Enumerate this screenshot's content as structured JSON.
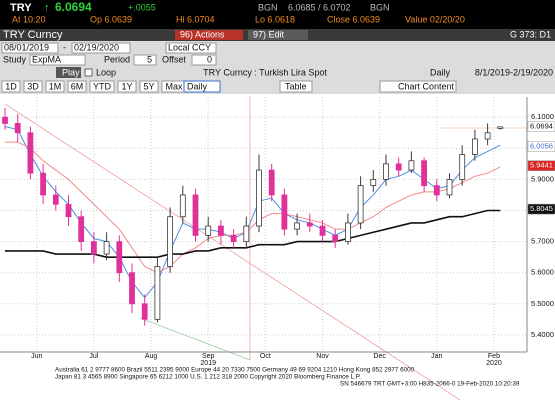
{
  "header": {
    "ticker": "TRY",
    "arrow": "↑",
    "last": "6.0694",
    "change": "+.0055",
    "bid_label": "BGN",
    "bid_ask": "6.0685 / 6.0702",
    "ask_label": "BGN",
    "time": "At 10:20",
    "open": "Op 6.0639",
    "high": "Hi 6.0704",
    "low": "Lo 6.0618",
    "close": "Close 6.0639",
    "value": "Value 02/20/20"
  },
  "toolbar": {
    "security": "TRY Curncy",
    "actions": "96) Actions",
    "edit": "97) Edit",
    "page": "G 373: D1"
  },
  "controls": {
    "start": "08/01/2019",
    "dash": "-",
    "end": "02/19/2020",
    "currency": "Local CCY",
    "study_label": "Study",
    "study": "ExpMA",
    "period_label": "Period",
    "period": "5",
    "offset_label": "Offset",
    "offset": "0",
    "play": "Play",
    "loop": "Loop",
    "frequency": "Daily",
    "range": "8/1/2019-2/19/2020"
  },
  "tabs": {
    "items": [
      "1D",
      "3D",
      "1M",
      "6M",
      "YTD",
      "1Y",
      "5Y",
      "Max"
    ],
    "period_select": "Daily",
    "table": "Table",
    "chart_content": "Chart Content"
  },
  "footer": [
    "Australia 61 2 9777 8600 Brazil 5511 2395 9000 Europe 44 20 7330 7500 Germany 49 69 9204 1210 Hong Kong 852 2977 6000",
    "Japan 81 3 4565 8900          Singapore 65 6212 1000          U.S. 1 212 318 2000          Copyright 2020 Bloomberg Finance L.P.",
    "SN 546679 TRT  GMT+3:00 H835-2066-0 19-Feb-2020 10:20:39"
  ],
  "chart_data": {
    "type": "candlestick",
    "title": "TRY Curncy : Turkish Lira Spot",
    "categories": [
      null,
      null,
      null,
      null,
      null,
      null,
      null,
      null,
      null,
      null,
      null,
      null,
      null,
      null,
      null,
      null,
      null,
      null,
      null,
      null,
      null,
      null,
      null,
      null,
      null,
      null,
      null,
      null,
      null,
      null,
      null,
      null,
      null,
      null,
      null,
      null,
      null,
      null,
      null,
      null
    ],
    "open": [
      6.1,
      6.08,
      6.05,
      5.92,
      5.85,
      5.82,
      5.78,
      5.7,
      5.66,
      5.7,
      5.6,
      5.5,
      5.45,
      5.62,
      5.78,
      5.85,
      5.72,
      5.75,
      5.72,
      5.7,
      5.75,
      5.93,
      5.85,
      5.74,
      5.76,
      5.75,
      5.72,
      5.7,
      5.76,
      5.88,
      5.9,
      5.95,
      5.93,
      5.96,
      5.88,
      5.85,
      5.9,
      5.98,
      6.03,
      6.064
    ],
    "high": [
      6.13,
      6.11,
      6.07,
      5.95,
      5.88,
      5.85,
      5.8,
      5.73,
      5.73,
      5.72,
      5.63,
      5.53,
      5.65,
      5.81,
      5.88,
      5.87,
      5.78,
      5.77,
      5.74,
      5.78,
      5.98,
      5.95,
      5.87,
      5.79,
      5.79,
      5.77,
      5.74,
      5.79,
      5.91,
      5.93,
      5.98,
      5.97,
      5.99,
      5.97,
      5.9,
      5.92,
      6.01,
      6.06,
      6.08,
      6.07
    ],
    "low": [
      6.06,
      6.02,
      5.9,
      5.82,
      5.8,
      5.75,
      5.67,
      5.63,
      5.64,
      5.57,
      5.47,
      5.43,
      5.44,
      5.6,
      5.76,
      5.7,
      5.7,
      5.69,
      5.68,
      5.68,
      5.73,
      5.83,
      5.72,
      5.72,
      5.73,
      5.7,
      5.68,
      5.69,
      5.74,
      5.86,
      5.88,
      5.91,
      5.92,
      5.86,
      5.83,
      5.84,
      5.88,
      5.96,
      6.01,
      6.06
    ],
    "close": [
      6.08,
      6.05,
      5.92,
      5.85,
      5.82,
      5.78,
      5.7,
      5.66,
      5.7,
      5.6,
      5.5,
      5.45,
      5.62,
      5.78,
      5.85,
      5.72,
      5.75,
      5.72,
      5.7,
      5.75,
      5.93,
      5.85,
      5.74,
      5.76,
      5.75,
      5.72,
      5.7,
      5.76,
      5.88,
      5.9,
      5.95,
      5.93,
      5.96,
      5.88,
      5.85,
      5.9,
      5.98,
      6.03,
      6.05,
      6.069
    ],
    "up_color": "#3a3a3a",
    "down_color": "#e0309a",
    "series": [
      {
        "color": "#4a8fe0",
        "values": [
          6.07,
          6.06,
          5.98,
          5.91,
          5.86,
          5.82,
          5.76,
          5.71,
          5.7,
          5.65,
          5.57,
          5.52,
          5.57,
          5.67,
          5.76,
          5.74,
          5.74,
          5.73,
          5.71,
          5.73,
          5.83,
          5.84,
          5.79,
          5.77,
          5.76,
          5.74,
          5.72,
          5.74,
          5.81,
          5.85,
          5.9,
          5.91,
          5.93,
          5.9,
          5.87,
          5.88,
          5.93,
          5.97,
          5.99,
          6.01
        ]
      },
      {
        "color": "#f08a8a",
        "values": [
          6.02,
          6.02,
          6.0,
          5.96,
          5.93,
          5.9,
          5.86,
          5.82,
          5.78,
          5.74,
          5.68,
          5.62,
          5.6,
          5.62,
          5.66,
          5.68,
          5.71,
          5.72,
          5.72,
          5.73,
          5.77,
          5.79,
          5.79,
          5.78,
          5.77,
          5.76,
          5.74,
          5.74,
          5.76,
          5.78,
          5.81,
          5.83,
          5.85,
          5.86,
          5.86,
          5.87,
          5.89,
          5.91,
          5.92,
          5.94
        ]
      },
      {
        "color": "#111111",
        "values": [
          5.67,
          5.67,
          5.67,
          5.67,
          5.66,
          5.66,
          5.66,
          5.66,
          5.65,
          5.65,
          5.65,
          5.65,
          5.65,
          5.66,
          5.66,
          5.67,
          5.67,
          5.68,
          5.68,
          5.68,
          5.69,
          5.69,
          5.69,
          5.7,
          5.7,
          5.7,
          5.7,
          5.71,
          5.72,
          5.73,
          5.74,
          5.75,
          5.76,
          5.76,
          5.77,
          5.78,
          5.78,
          5.79,
          5.8,
          5.8
        ]
      }
    ],
    "last_values": [
      6.0694,
      6.0056,
      5.9441,
      5.8045
    ],
    "ylim": [
      5.345,
      6.165
    ],
    "yticks": [
      {
        "value": 5.4,
        "label": "5.4000"
      },
      {
        "value": 5.5,
        "label": "5.5000"
      },
      {
        "value": 5.6,
        "label": "5.6000"
      },
      {
        "value": 5.7,
        "label": "5.7000"
      },
      {
        "value": 5.8,
        "label": "5.8000"
      },
      {
        "value": 5.9,
        "label": "5.9000"
      },
      {
        "value": 6.0,
        "label": "6.0000"
      },
      {
        "value": 6.1,
        "label": "6.1000"
      }
    ],
    "xticks": [
      {
        "value": 2.5,
        "label": "Jun"
      },
      {
        "value": 7,
        "label": "Jul"
      },
      {
        "value": 11.5,
        "label": "Aug"
      },
      {
        "value": 16,
        "label": "Sep"
      },
      {
        "value": 20.5,
        "label": "Oct"
      },
      {
        "value": 25,
        "label": "Nov"
      },
      {
        "value": 29.5,
        "label": "Dec"
      },
      {
        "value": 34,
        "label": "Jan"
      },
      {
        "value": 38.5,
        "label": "Feb"
      }
    ],
    "year_ticks": [
      {
        "value": 16,
        "label": "2019"
      },
      {
        "value": 38.5,
        "label": "2020"
      }
    ],
    "grid": true
  }
}
